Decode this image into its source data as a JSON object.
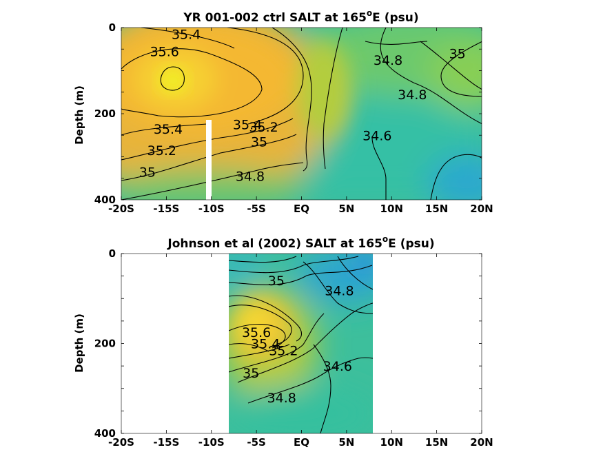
{
  "chart_data": [
    {
      "type": "heatmap",
      "subtype": "filled-contour",
      "title": "YR 001-002 ctrl SALT at 165",
      "title_degree": "o",
      "title_suffix": "E (psu)",
      "xlabel": "",
      "ylabel": "Depth (m)",
      "x_ticks": [
        "-20S",
        "-15S",
        "-10S",
        "-5S",
        "EQ",
        "5N",
        "10N",
        "15N",
        "20N"
      ],
      "y_ticks": [
        "0",
        "200",
        "400"
      ],
      "xlim": [
        -20,
        20
      ],
      "ylim": [
        0,
        400
      ],
      "y_reversed": true,
      "data_extent": {
        "lat": [
          -20,
          20
        ],
        "depth": [
          0,
          385
        ]
      },
      "missing_strip": {
        "lat": [
          -10.5,
          -10.0
        ],
        "depth_from": 205
      },
      "contour_levels": [
        34.6,
        34.8,
        35,
        35.2,
        35.4,
        35.6
      ],
      "contour_labels": [
        {
          "text": "35.4",
          "lat": -12.8,
          "depth": 15
        },
        {
          "text": "35.6",
          "lat": -15.2,
          "depth": 55
        },
        {
          "text": "34.8",
          "lat": 9.6,
          "depth": 75
        },
        {
          "text": "35",
          "lat": 17.3,
          "depth": 60
        },
        {
          "text": "34.8",
          "lat": 12.3,
          "depth": 155
        },
        {
          "text": "35.4",
          "lat": -14.8,
          "depth": 235
        },
        {
          "text": "35.4",
          "lat": -6.0,
          "depth": 225
        },
        {
          "text": "35.2",
          "lat": -4.2,
          "depth": 230
        },
        {
          "text": "34.6",
          "lat": 8.4,
          "depth": 250
        },
        {
          "text": "35.2",
          "lat": -15.5,
          "depth": 285
        },
        {
          "text": "35",
          "lat": -4.7,
          "depth": 265
        },
        {
          "text": "35",
          "lat": -17.1,
          "depth": 335
        },
        {
          "text": "34.8",
          "lat": -5.7,
          "depth": 345
        }
      ]
    },
    {
      "type": "heatmap",
      "subtype": "filled-contour",
      "title": "Johnson et al (2002) SALT at 165",
      "title_degree": "o",
      "title_suffix": "E (psu)",
      "xlabel": "",
      "ylabel": "Depth (m)",
      "x_ticks": [
        "-20S",
        "-15S",
        "-10S",
        "-5S",
        "EQ",
        "5N",
        "10N",
        "15N",
        "20N"
      ],
      "y_ticks": [
        "0",
        "200",
        "400"
      ],
      "xlim": [
        -20,
        20
      ],
      "ylim": [
        0,
        400
      ],
      "y_reversed": true,
      "data_extent": {
        "lat": [
          -8,
          8
        ],
        "depth": [
          0,
          400
        ]
      },
      "contour_levels": [
        34.6,
        34.8,
        35,
        35.2,
        35.4,
        35.6
      ],
      "contour_labels": [
        {
          "text": "35",
          "lat": -2.8,
          "depth": 60
        },
        {
          "text": "34.8",
          "lat": 4.2,
          "depth": 82
        },
        {
          "text": "35.6",
          "lat": -5.0,
          "depth": 175
        },
        {
          "text": "35.4",
          "lat": -4.0,
          "depth": 200
        },
        {
          "text": "35.2",
          "lat": -2.0,
          "depth": 215
        },
        {
          "text": "34.6",
          "lat": 4.0,
          "depth": 250
        },
        {
          "text": "35",
          "lat": -5.6,
          "depth": 265
        },
        {
          "text": "34.8",
          "lat": -2.2,
          "depth": 320
        }
      ]
    }
  ]
}
